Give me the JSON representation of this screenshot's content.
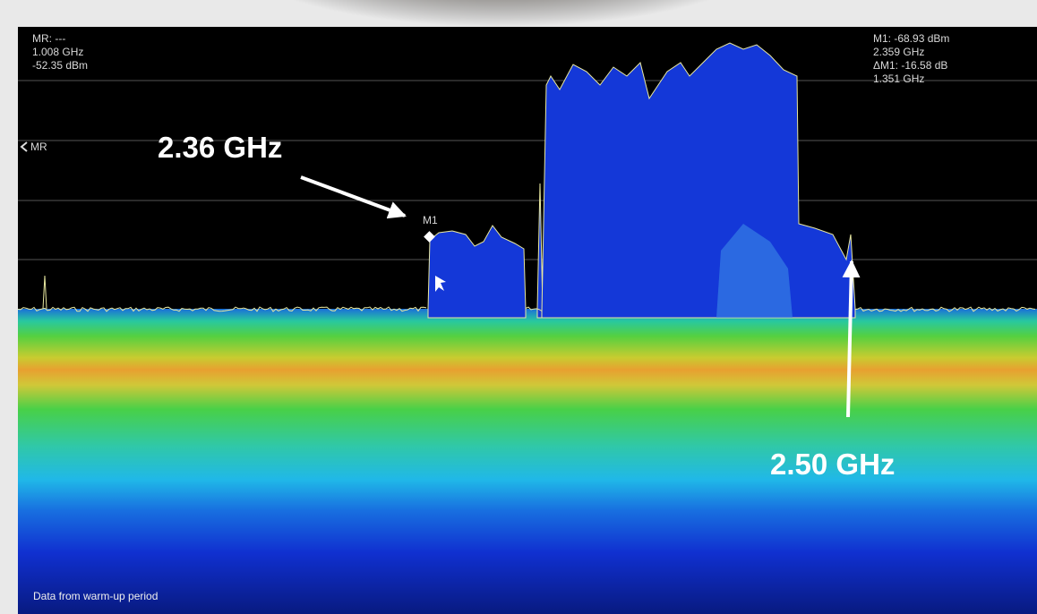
{
  "readouts": {
    "mr": [
      "MR: ---",
      "1.008 GHz",
      "-52.35 dBm"
    ],
    "m1": [
      "M1: -68.93 dBm",
      "2.359 GHz",
      "ΔM1: -16.58 dB",
      "1.351 GHz"
    ]
  },
  "markers": {
    "mr": "MR",
    "m1": "M1"
  },
  "annotations": [
    "2.36 GHz",
    "2.50 GHz"
  ],
  "footer": "Data from warm-up period"
}
